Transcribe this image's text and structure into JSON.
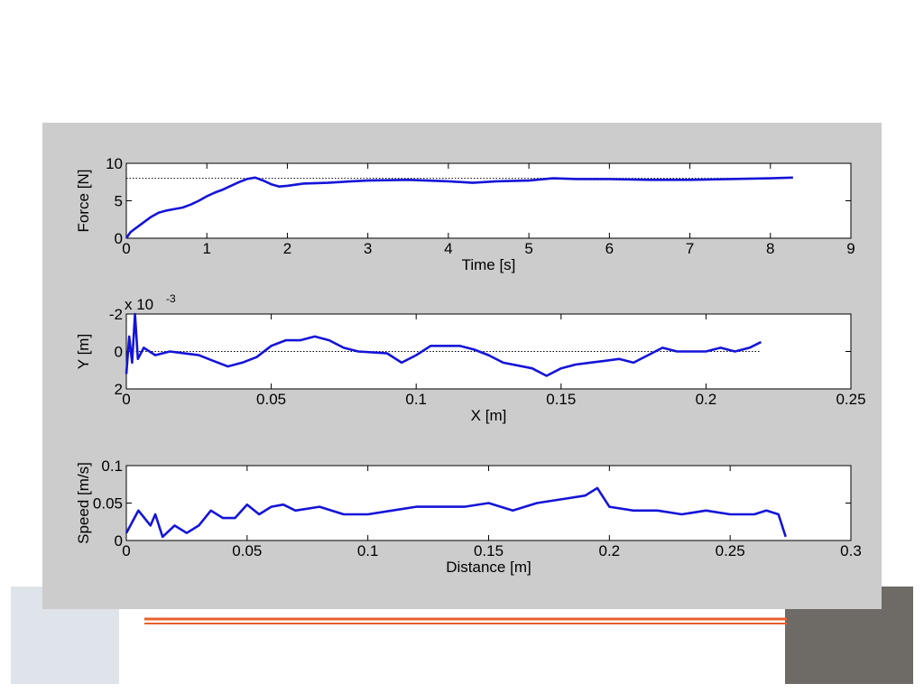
{
  "chart_data": [
    {
      "type": "line",
      "xlabel": "Time [s]",
      "ylabel": "Force [N]",
      "xlim": [
        0,
        9
      ],
      "xticks": [
        0,
        1,
        2,
        3,
        4,
        5,
        6,
        7,
        8,
        9
      ],
      "ylim": [
        0,
        10
      ],
      "yticks": [
        0,
        5,
        10
      ],
      "reference": 8,
      "series": [
        {
          "color": "#1414d8",
          "x": [
            0,
            0.05,
            0.1,
            0.2,
            0.3,
            0.4,
            0.5,
            0.6,
            0.7,
            0.8,
            0.9,
            1.0,
            1.1,
            1.2,
            1.3,
            1.4,
            1.5,
            1.6,
            1.7,
            1.8,
            1.9,
            2.0,
            2.2,
            2.5,
            2.8,
            3.0,
            3.5,
            4.0,
            4.3,
            4.6,
            5.0,
            5.3,
            5.6,
            6.0,
            6.5,
            7.0,
            7.5,
            8.0,
            8.28
          ],
          "values": [
            0,
            0.8,
            1.2,
            2.0,
            2.8,
            3.4,
            3.7,
            3.9,
            4.1,
            4.5,
            5.0,
            5.6,
            6.1,
            6.5,
            7.0,
            7.5,
            7.9,
            8.1,
            7.7,
            7.2,
            6.9,
            7.0,
            7.3,
            7.4,
            7.6,
            7.7,
            7.8,
            7.6,
            7.4,
            7.6,
            7.7,
            8.0,
            7.9,
            7.9,
            7.8,
            7.8,
            7.9,
            8.0,
            8.1
          ]
        }
      ]
    },
    {
      "type": "line",
      "xlabel": "X [m]",
      "ylabel": "Y [m]",
      "exponent_base": "x 10",
      "exponent": "-3",
      "xlim": [
        0,
        0.25
      ],
      "xticks": [
        0,
        0.05,
        0.1,
        0.15,
        0.2,
        0.25
      ],
      "ylim": [
        -2,
        2
      ],
      "yticks": [
        -2,
        0,
        2
      ],
      "y_reversed": true,
      "reference": 0,
      "series": [
        {
          "color": "#1414d8",
          "x": [
            0,
            0.001,
            0.002,
            0.003,
            0.004,
            0.006,
            0.01,
            0.015,
            0.02,
            0.025,
            0.03,
            0.035,
            0.04,
            0.045,
            0.05,
            0.055,
            0.06,
            0.065,
            0.07,
            0.075,
            0.08,
            0.09,
            0.095,
            0.1,
            0.105,
            0.115,
            0.12,
            0.125,
            0.13,
            0.14,
            0.145,
            0.15,
            0.155,
            0.16,
            0.165,
            0.17,
            0.175,
            0.18,
            0.185,
            0.19,
            0.2,
            0.205,
            0.21,
            0.215,
            0.219
          ],
          "values": [
            1.2,
            -0.8,
            0.6,
            -2.0,
            0.4,
            -0.2,
            0.2,
            0.0,
            0.1,
            0.2,
            0.5,
            0.8,
            0.6,
            0.3,
            -0.3,
            -0.6,
            -0.6,
            -0.8,
            -0.6,
            -0.2,
            0.0,
            0.1,
            0.6,
            0.2,
            -0.3,
            -0.3,
            -0.1,
            0.2,
            0.6,
            0.9,
            1.3,
            0.9,
            0.7,
            0.6,
            0.5,
            0.4,
            0.6,
            0.2,
            -0.2,
            0.0,
            0.0,
            -0.2,
            0.0,
            -0.2,
            -0.5
          ]
        }
      ]
    },
    {
      "type": "line",
      "xlabel": "Distance [m]",
      "ylabel": "Speed [m/s]",
      "xlim": [
        0,
        0.3
      ],
      "xticks": [
        0,
        0.05,
        0.1,
        0.15,
        0.2,
        0.25,
        0.3
      ],
      "ylim": [
        0,
        0.1
      ],
      "yticks": [
        0,
        0.05,
        0.1
      ],
      "series": [
        {
          "color": "#1414d8",
          "x": [
            0,
            0.005,
            0.01,
            0.012,
            0.015,
            0.02,
            0.025,
            0.03,
            0.035,
            0.04,
            0.045,
            0.05,
            0.055,
            0.06,
            0.065,
            0.07,
            0.08,
            0.09,
            0.1,
            0.11,
            0.12,
            0.13,
            0.14,
            0.15,
            0.16,
            0.17,
            0.18,
            0.19,
            0.195,
            0.2,
            0.21,
            0.22,
            0.23,
            0.24,
            0.25,
            0.26,
            0.265,
            0.27,
            0.273
          ],
          "values": [
            0.01,
            0.04,
            0.02,
            0.035,
            0.005,
            0.02,
            0.01,
            0.02,
            0.04,
            0.03,
            0.03,
            0.048,
            0.035,
            0.045,
            0.048,
            0.04,
            0.045,
            0.035,
            0.035,
            0.04,
            0.045,
            0.045,
            0.045,
            0.05,
            0.04,
            0.05,
            0.055,
            0.06,
            0.07,
            0.045,
            0.04,
            0.04,
            0.035,
            0.04,
            0.035,
            0.035,
            0.04,
            0.035,
            0.005
          ]
        }
      ]
    }
  ]
}
